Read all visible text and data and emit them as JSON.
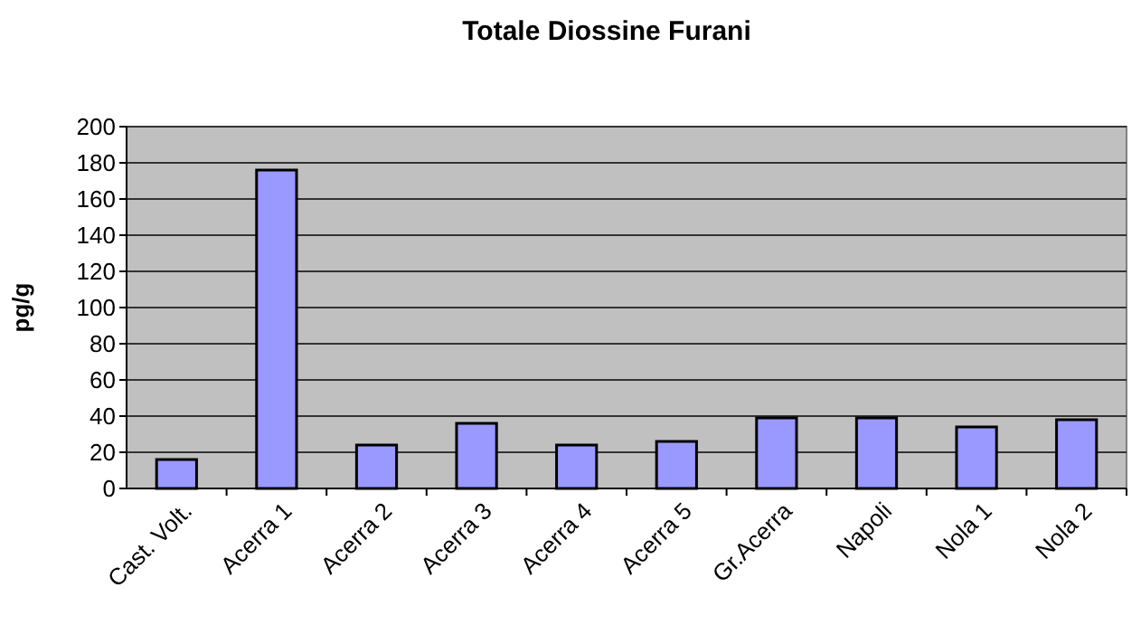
{
  "chart_data": {
    "type": "bar",
    "title": "Totale Diossine Furani",
    "ylabel": "pg/g",
    "categories": [
      "Cast. Volt.",
      "Acerra 1",
      "Acerra 2",
      "Acerra 3",
      "Acerra 4",
      "Acerra 5",
      "Gr.Acerra",
      "Napoli",
      "Nola 1",
      "Nola 2"
    ],
    "values": [
      16,
      176,
      24,
      36,
      24,
      26,
      39,
      39,
      34,
      38
    ],
    "color": "#9999ff",
    "ylim": [
      0,
      200
    ],
    "yticks": [
      0,
      20,
      40,
      60,
      80,
      100,
      120,
      140,
      160,
      180,
      200
    ],
    "grid": "y"
  }
}
